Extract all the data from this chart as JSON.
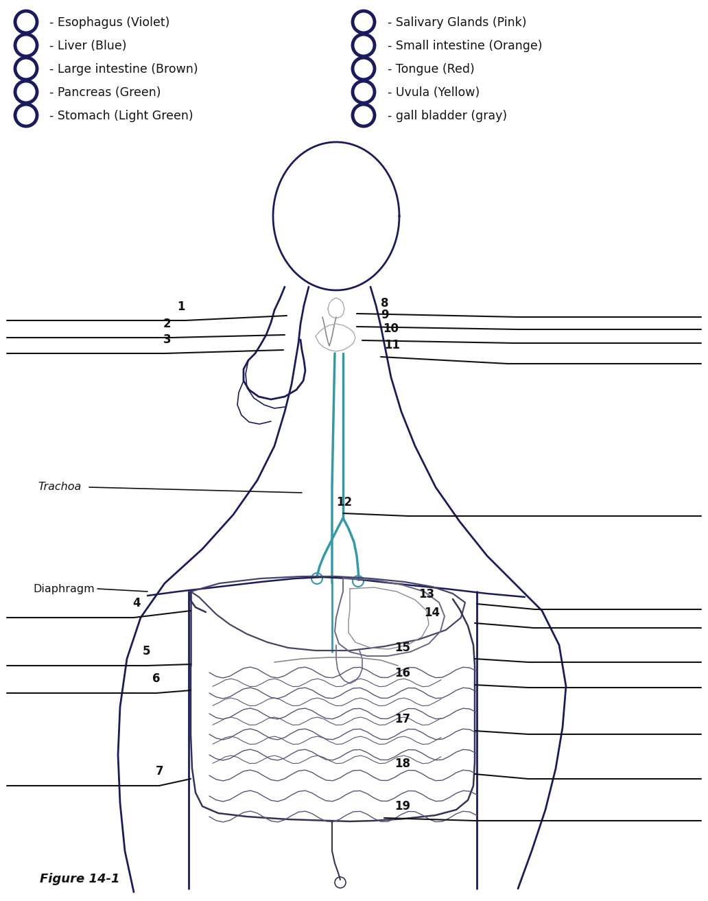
{
  "legend_left": [
    "- Esophagus (Violet)",
    "- Liver (Blue)",
    "- Large intestine (Brown)",
    "- Pancreas (Green)",
    "- Stomach (Light Green)"
  ],
  "legend_right": [
    "- Salivary Glands (Pink)",
    "- Small intestine (Orange)",
    "- Tongue (Red)",
    "- Uvula (Yellow)",
    "- gall bladder (gray)"
  ],
  "figure_label": "Figure 14-1",
  "trachoa_label": "Trachoa",
  "diaphragm_label": "Diaphragm",
  "bg_color": "#ffffff",
  "body_color": "#1a1a5e",
  "pointer_color": "#111111",
  "text_color": "#111111",
  "label_fontsize": 12.5,
  "number_fontsize": 12,
  "figure_label_fontsize": 13
}
